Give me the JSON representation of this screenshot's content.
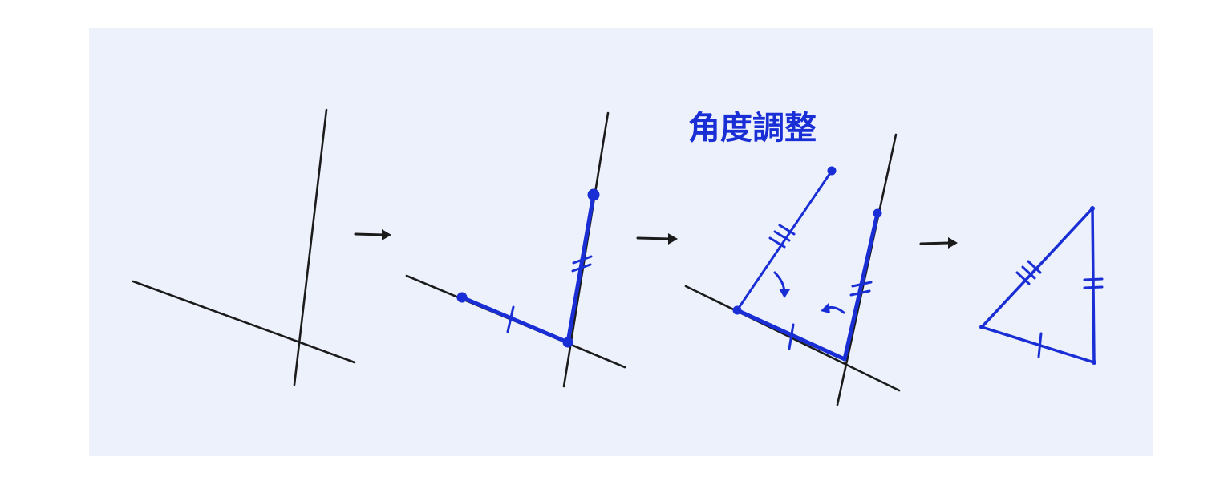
{
  "colors": {
    "background": "#ffffff",
    "panel": "#ecf1fc",
    "ink": "#1b1b1b",
    "accent": "#1a2ed6"
  },
  "steps": [
    {
      "id": "step-1",
      "description_label": ""
    },
    {
      "id": "step-2",
      "description_label": ""
    },
    {
      "id": "step-3",
      "description_label": "角度調整"
    },
    {
      "id": "step-4",
      "description_label": ""
    }
  ],
  "annotation": {
    "label": "角度調整"
  }
}
